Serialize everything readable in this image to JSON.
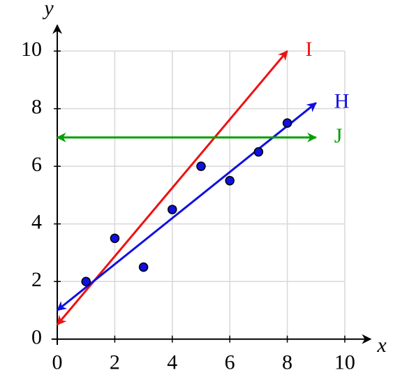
{
  "chart_data": {
    "type": "scatter",
    "x_label": "x",
    "y_label": "y",
    "xlim": [
      -0.2,
      10.9
    ],
    "ylim": [
      -0.2,
      10.9
    ],
    "xticks": [
      0,
      2,
      4,
      6,
      8,
      10
    ],
    "yticks": [
      0,
      2,
      4,
      6,
      8,
      10
    ],
    "grid": true,
    "points": {
      "color": "#1010e0",
      "x": [
        1,
        2,
        3,
        4,
        5,
        6,
        7,
        8
      ],
      "y": [
        2,
        3.5,
        2.5,
        4.5,
        6,
        5.5,
        6.5,
        7.5
      ]
    },
    "lines": [
      {
        "name": "I",
        "color": "#ee1111",
        "x": [
          0,
          8
        ],
        "y": [
          0.5,
          10
        ]
      },
      {
        "name": "H",
        "color": "#1010e0",
        "x": [
          0,
          9
        ],
        "y": [
          1,
          8.2
        ]
      },
      {
        "name": "J",
        "color": "#00a000",
        "x": [
          0,
          9
        ],
        "y": [
          7,
          7
        ]
      }
    ]
  }
}
